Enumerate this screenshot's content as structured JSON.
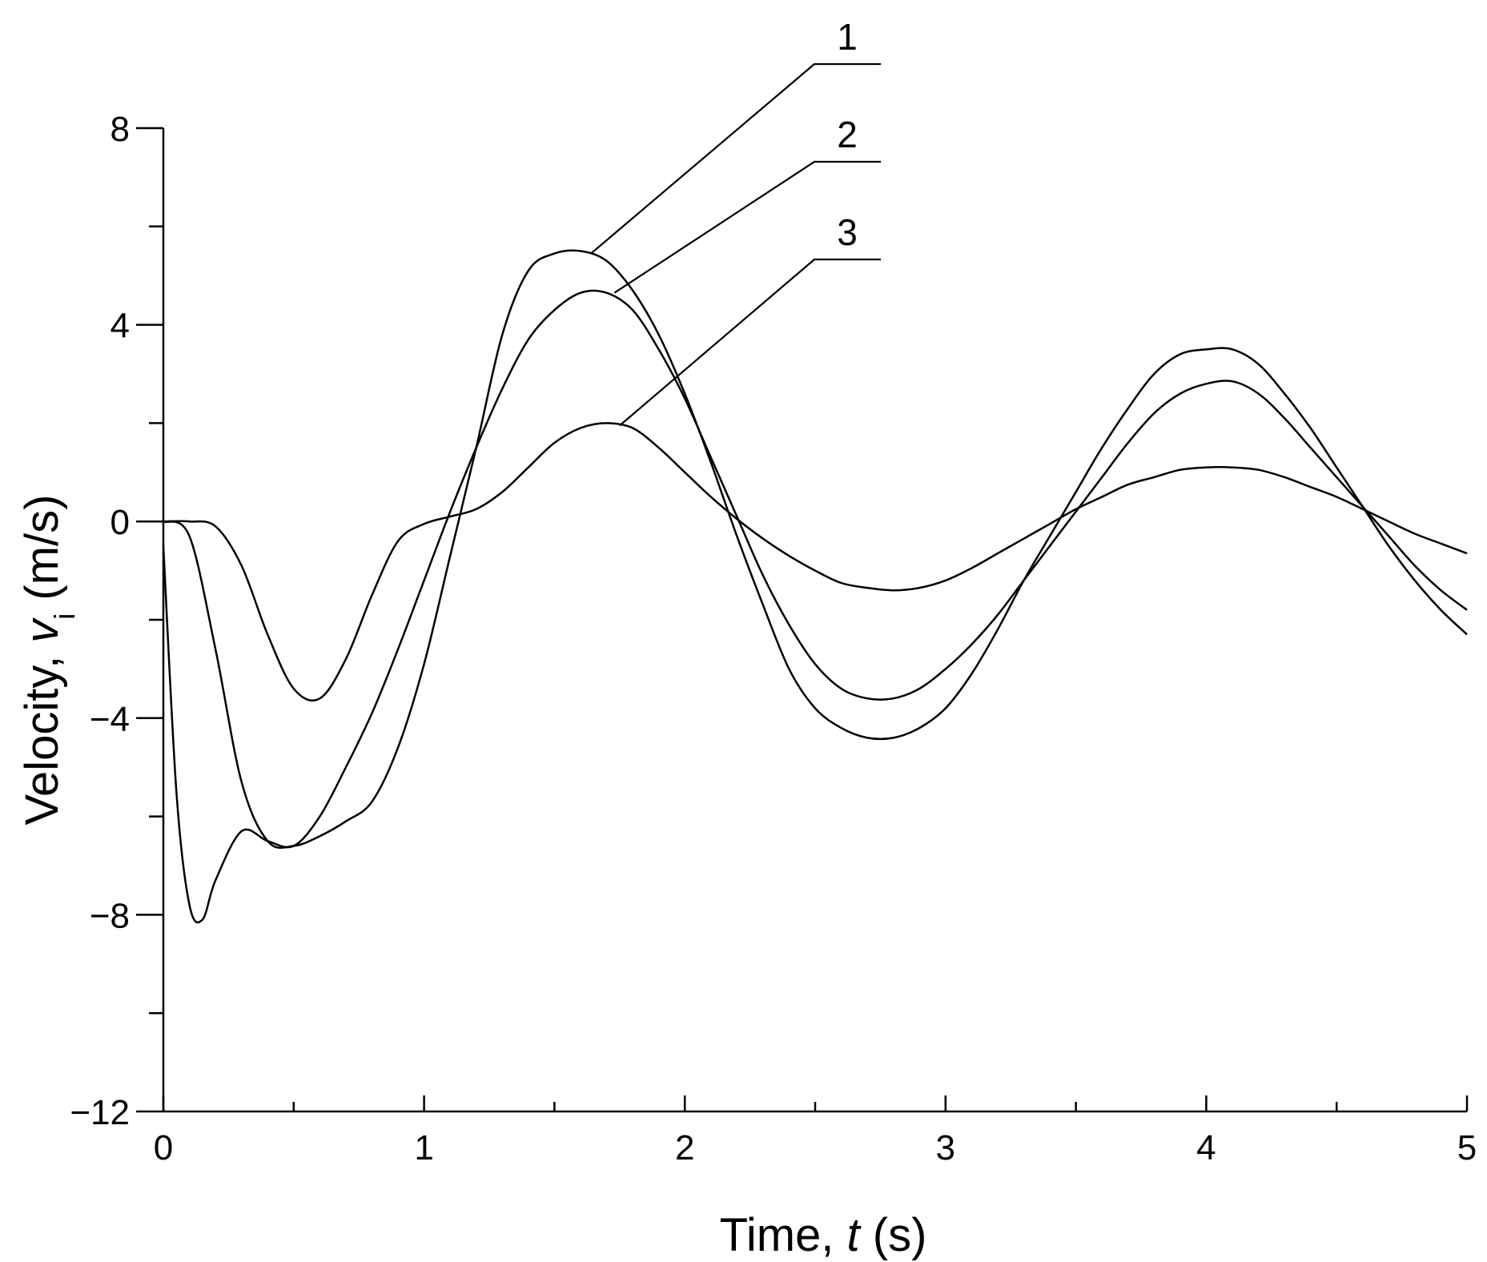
{
  "chart_data": {
    "type": "line",
    "title": "",
    "xlabel": {
      "prefix": "Time, ",
      "symbol": "t",
      "suffix": " (s)"
    },
    "ylabel": {
      "prefix": "Velocity, ",
      "symbol": "v",
      "subscript": "i",
      "suffix": " (m/s)"
    },
    "xlim": [
      0,
      5
    ],
    "ylim": [
      -12,
      8
    ],
    "x_major_ticks": [
      0,
      1,
      2,
      3,
      4,
      5
    ],
    "x_tick_labels": [
      "0",
      "1",
      "2",
      "3",
      "4",
      "5"
    ],
    "x_minor_ticks": [
      0.5,
      1.5,
      2.5,
      3.5,
      4.5
    ],
    "y_major_ticks": [
      -12,
      -8,
      -4,
      0,
      4,
      8
    ],
    "y_tick_labels": [
      "−12",
      "−8",
      "−4",
      "0",
      "4",
      "8"
    ],
    "y_minor_ticks": [
      -10,
      -6,
      -2,
      2,
      6
    ],
    "grid": false,
    "legend": "callouts",
    "series": [
      {
        "name": "1",
        "x": [
          0,
          0.1,
          0.2,
          0.3,
          0.4,
          0.5,
          0.6,
          0.7,
          0.8,
          0.9,
          1.0,
          1.1,
          1.2,
          1.3,
          1.4,
          1.5,
          1.6,
          1.7,
          1.8,
          1.9,
          2.0,
          2.1,
          2.2,
          2.3,
          2.4,
          2.5,
          2.6,
          2.7,
          2.8,
          2.9,
          3.0,
          3.1,
          3.2,
          3.3,
          3.4,
          3.5,
          3.6,
          3.7,
          3.8,
          3.9,
          4.0,
          4.1,
          4.2,
          4.3,
          4.4,
          4.5,
          4.6,
          4.7,
          4.8,
          4.9,
          5.0
        ],
        "y": [
          0,
          -0.3,
          -2.6,
          -5.3,
          -6.5,
          -6.6,
          -6.4,
          -6.1,
          -5.7,
          -4.6,
          -2.9,
          -0.7,
          1.5,
          3.8,
          5.1,
          5.45,
          5.5,
          5.3,
          4.7,
          3.8,
          2.6,
          1.2,
          -0.3,
          -1.7,
          -3.0,
          -3.8,
          -4.2,
          -4.4,
          -4.4,
          -4.2,
          -3.8,
          -3.1,
          -2.2,
          -1.2,
          -0.3,
          0.6,
          1.5,
          2.3,
          3.0,
          3.4,
          3.5,
          3.5,
          3.2,
          2.6,
          1.9,
          1.1,
          0.3,
          -0.5,
          -1.2,
          -1.8,
          -2.3
        ]
      },
      {
        "name": "2",
        "x": [
          0,
          0.05,
          0.1,
          0.15,
          0.2,
          0.3,
          0.4,
          0.5,
          0.6,
          0.7,
          0.8,
          0.9,
          1.0,
          1.1,
          1.2,
          1.3,
          1.4,
          1.5,
          1.6,
          1.7,
          1.8,
          1.9,
          2.0,
          2.1,
          2.2,
          2.3,
          2.4,
          2.5,
          2.6,
          2.7,
          2.8,
          2.9,
          3.0,
          3.1,
          3.2,
          3.3,
          3.4,
          3.5,
          3.6,
          3.7,
          3.8,
          3.9,
          4.0,
          4.1,
          4.2,
          4.3,
          4.4,
          4.5,
          4.6,
          4.7,
          4.8,
          4.9,
          5.0
        ],
        "y": [
          -0.5,
          -5.5,
          -7.8,
          -8.1,
          -7.3,
          -6.3,
          -6.5,
          -6.6,
          -6.0,
          -5.0,
          -3.9,
          -2.6,
          -1.2,
          0.2,
          1.5,
          2.7,
          3.7,
          4.3,
          4.65,
          4.65,
          4.3,
          3.5,
          2.5,
          1.3,
          0.1,
          -1.1,
          -2.1,
          -2.9,
          -3.4,
          -3.6,
          -3.6,
          -3.4,
          -3.0,
          -2.5,
          -1.9,
          -1.2,
          -0.5,
          0.2,
          0.9,
          1.6,
          2.2,
          2.6,
          2.8,
          2.85,
          2.6,
          2.1,
          1.5,
          0.9,
          0.3,
          -0.3,
          -0.9,
          -1.4,
          -1.8
        ]
      },
      {
        "name": "3",
        "x": [
          0,
          0.1,
          0.2,
          0.3,
          0.4,
          0.5,
          0.6,
          0.7,
          0.8,
          0.9,
          1.0,
          1.1,
          1.2,
          1.3,
          1.4,
          1.5,
          1.6,
          1.7,
          1.8,
          1.9,
          2.0,
          2.1,
          2.2,
          2.3,
          2.4,
          2.5,
          2.6,
          2.7,
          2.8,
          2.9,
          3.0,
          3.1,
          3.2,
          3.3,
          3.4,
          3.5,
          3.6,
          3.7,
          3.8,
          3.9,
          4.0,
          4.1,
          4.2,
          4.3,
          4.4,
          4.5,
          4.6,
          4.7,
          4.8,
          4.9,
          5.0
        ],
        "y": [
          0,
          0,
          -0.1,
          -0.9,
          -2.3,
          -3.4,
          -3.6,
          -2.8,
          -1.5,
          -0.4,
          -0.05,
          0.1,
          0.25,
          0.6,
          1.1,
          1.6,
          1.9,
          2.0,
          1.9,
          1.5,
          1.0,
          0.5,
          0.05,
          -0.35,
          -0.7,
          -1.0,
          -1.25,
          -1.35,
          -1.4,
          -1.35,
          -1.2,
          -0.95,
          -0.65,
          -0.35,
          -0.05,
          0.25,
          0.5,
          0.75,
          0.9,
          1.05,
          1.1,
          1.1,
          1.05,
          0.9,
          0.7,
          0.5,
          0.25,
          0.0,
          -0.25,
          -0.45,
          -0.65
        ]
      }
    ],
    "annotations": [
      {
        "label": "1",
        "series": "1",
        "anchor_x": 1.64,
        "anchor_y": 5.45
      },
      {
        "label": "2",
        "series": "2",
        "anchor_x": 1.73,
        "anchor_y": 4.65
      },
      {
        "label": "3",
        "series": "3",
        "anchor_x": 1.75,
        "anchor_y": 1.95
      }
    ]
  }
}
